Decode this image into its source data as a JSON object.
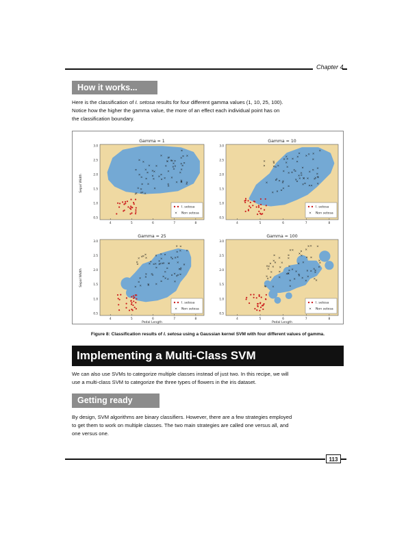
{
  "header": {
    "chapter": "Chapter 4"
  },
  "how_it_works": {
    "heading": "How it works...",
    "para_pre": "Here is the classification of ",
    "para_em": "I. setosa",
    "para_line1_post": " results for four different gamma values (1, 10, 25, 100).",
    "para_line2": "Notice how the higher the gamma value, the more of an effect each individual point has on",
    "para_line3": "the classification boundary."
  },
  "figure": {
    "legend_setosa": "I. setosa",
    "legend_non": "Non setosa",
    "ylabel": "Sepal Width",
    "xlabel": "Pedal Length",
    "caption_pre": "Figure 8: Classification results of ",
    "caption_em": "I. setosa",
    "caption_post": " using a Gaussian kernel SVM with four different values of gamma."
  },
  "chart_data": [
    {
      "type": "scatter",
      "title": "Gamma = 1",
      "x_ticks": [
        "4",
        "5",
        "6",
        "7",
        "8"
      ],
      "y_ticks": [
        "0.5",
        "1.0",
        "1.5",
        "2.0",
        "2.5",
        "3.0"
      ],
      "series": [
        {
          "name": "I. setosa",
          "marker": "dot",
          "color": "#cc1f1f"
        },
        {
          "name": "Non setosa",
          "marker": "x",
          "color": "#1a1a1a"
        }
      ]
    },
    {
      "type": "scatter",
      "title": "Gamma = 10",
      "x_ticks": [
        "4",
        "5",
        "6",
        "7",
        "8"
      ],
      "y_ticks": [
        "0.5",
        "1.0",
        "1.5",
        "2.0",
        "2.5",
        "3.0"
      ],
      "series": [
        {
          "name": "I. setosa",
          "marker": "dot",
          "color": "#cc1f1f"
        },
        {
          "name": "Non setosa",
          "marker": "x",
          "color": "#1a1a1a"
        }
      ]
    },
    {
      "type": "scatter",
      "title": "Gamma = 25",
      "x_ticks": [
        "4",
        "5",
        "6",
        "7",
        "8"
      ],
      "y_ticks": [
        "0.5",
        "1.0",
        "1.5",
        "2.0",
        "2.5",
        "3.0"
      ],
      "series": [
        {
          "name": "I. setosa",
          "marker": "dot",
          "color": "#cc1f1f"
        },
        {
          "name": "Non setosa",
          "marker": "x",
          "color": "#1a1a1a"
        }
      ]
    },
    {
      "type": "scatter",
      "title": "Gamma = 100",
      "x_ticks": [
        "4",
        "5",
        "6",
        "7",
        "8"
      ],
      "y_ticks": [
        "0.5",
        "1.0",
        "1.5",
        "2.0",
        "2.5",
        "3.0"
      ],
      "series": [
        {
          "name": "I. setosa",
          "marker": "dot",
          "color": "#cc1f1f"
        },
        {
          "name": "Non setosa",
          "marker": "x",
          "color": "#1a1a1a"
        }
      ]
    }
  ],
  "colors": {
    "background_region": "#efd9a2",
    "decision_region": "#74a9d4",
    "setosa": "#cc1f1f",
    "non_setosa": "#1a1a1a"
  },
  "impl": {
    "heading": "Implementing a Multi-Class SVM",
    "para_line1": "We can also use SVMs to categorize multiple classes instead of just two.  In this recipe, we will",
    "para_line2": "use a multi-class SVM to categorize the three types of flowers in the iris dataset."
  },
  "getting_ready": {
    "heading": "Getting ready",
    "para_line1": "By design, SVM algorithms are binary classifiers. However, there are a few strategies employed",
    "para_line2": "to get them to work on multiple classes. The two main strategies are called one versus all, and",
    "para_line3": "one versus one."
  },
  "footer": {
    "page_number": "113"
  }
}
